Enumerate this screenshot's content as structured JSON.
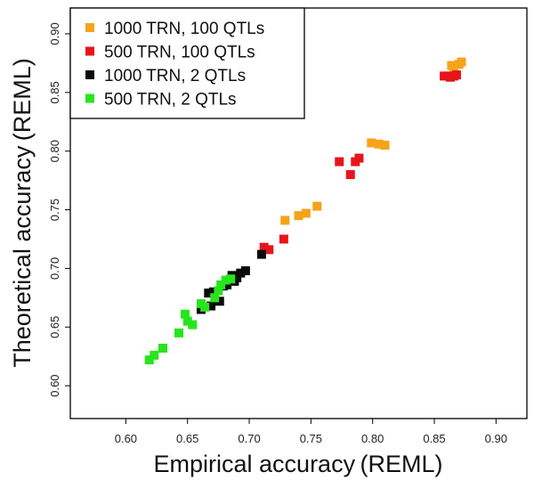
{
  "chart_data": {
    "type": "scatter",
    "xlabel": "Empirical accuracy (REML)",
    "ylabel": "Theoretical accuracy (REML)",
    "xlim": [
      0.555,
      0.925
    ],
    "ylim": [
      0.572,
      0.922
    ],
    "x_ticks": [
      0.6,
      0.65,
      0.7,
      0.75,
      0.8,
      0.85,
      0.9
    ],
    "y_ticks": [
      0.6,
      0.65,
      0.7,
      0.75,
      0.8,
      0.85,
      0.9
    ],
    "x_tick_labels": [
      "0.60",
      "0.65",
      "0.70",
      "0.75",
      "0.80",
      "0.85",
      "0.90"
    ],
    "y_tick_labels": [
      "0.60",
      "0.65",
      "0.70",
      "0.75",
      "0.80",
      "0.85",
      "0.90"
    ],
    "grid": false,
    "legend_position": "top-left",
    "series": [
      {
        "name": "1000 TRN, 100 QTLs",
        "color": "#F5A31A",
        "points": [
          [
            0.729,
            0.741
          ],
          [
            0.74,
            0.745
          ],
          [
            0.746,
            0.747
          ],
          [
            0.755,
            0.753
          ],
          [
            0.799,
            0.807
          ],
          [
            0.805,
            0.806
          ],
          [
            0.81,
            0.805
          ],
          [
            0.864,
            0.873
          ],
          [
            0.866,
            0.868
          ],
          [
            0.87,
            0.874
          ],
          [
            0.872,
            0.876
          ]
        ]
      },
      {
        "name": "500 TRN, 100 QTLs",
        "color": "#E8141B",
        "points": [
          [
            0.712,
            0.718
          ],
          [
            0.716,
            0.716
          ],
          [
            0.728,
            0.725
          ],
          [
            0.773,
            0.791
          ],
          [
            0.782,
            0.78
          ],
          [
            0.786,
            0.791
          ],
          [
            0.789,
            0.794
          ],
          [
            0.858,
            0.864
          ],
          [
            0.861,
            0.864
          ],
          [
            0.863,
            0.863
          ],
          [
            0.866,
            0.864
          ],
          [
            0.868,
            0.865
          ]
        ]
      },
      {
        "name": "1000 TRN, 2 QTLs",
        "color": "#0a0a0a",
        "points": [
          [
            0.661,
            0.665
          ],
          [
            0.667,
            0.679
          ],
          [
            0.669,
            0.668
          ],
          [
            0.671,
            0.68
          ],
          [
            0.676,
            0.672
          ],
          [
            0.679,
            0.685
          ],
          [
            0.682,
            0.686
          ],
          [
            0.684,
            0.69
          ],
          [
            0.686,
            0.694
          ],
          [
            0.688,
            0.689
          ],
          [
            0.69,
            0.692
          ],
          [
            0.693,
            0.696
          ],
          [
            0.697,
            0.698
          ],
          [
            0.71,
            0.712
          ]
        ]
      },
      {
        "name": "500 TRN, 2 QTLs",
        "color": "#27E51D",
        "points": [
          [
            0.619,
            0.622
          ],
          [
            0.623,
            0.626
          ],
          [
            0.63,
            0.632
          ],
          [
            0.643,
            0.645
          ],
          [
            0.648,
            0.661
          ],
          [
            0.65,
            0.655
          ],
          [
            0.654,
            0.652
          ],
          [
            0.661,
            0.67
          ],
          [
            0.664,
            0.667
          ],
          [
            0.672,
            0.675
          ],
          [
            0.675,
            0.681
          ],
          [
            0.677,
            0.686
          ],
          [
            0.681,
            0.69
          ],
          [
            0.685,
            0.691
          ]
        ]
      }
    ]
  }
}
